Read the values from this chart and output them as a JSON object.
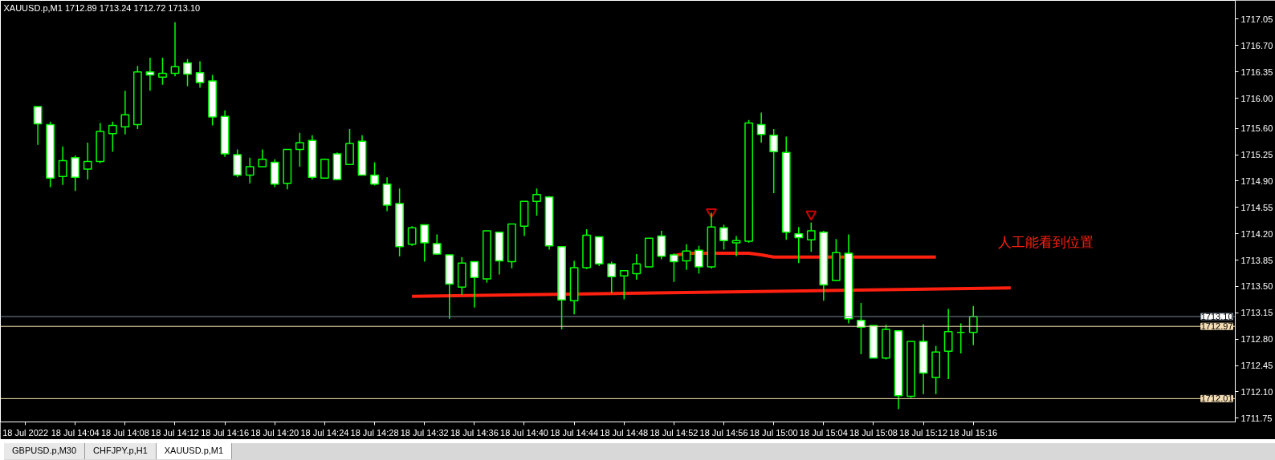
{
  "chart_data": {
    "type": "candlestick",
    "title": "XAUUSD.p,M1 1712.89 1713.24 1712.72 1713.10",
    "color": "#00ff00",
    "x": [
      "2022-07-18T14:01",
      "2022-07-18T14:02",
      "2022-07-18T14:03",
      "2022-07-18T14:04",
      "2022-07-18T14:05",
      "2022-07-18T14:06",
      "2022-07-18T14:07",
      "2022-07-18T14:08",
      "2022-07-18T14:09",
      "2022-07-18T14:10",
      "2022-07-18T14:11",
      "2022-07-18T14:12",
      "2022-07-18T14:13",
      "2022-07-18T14:14",
      "2022-07-18T14:15",
      "2022-07-18T14:16",
      "2022-07-18T14:17",
      "2022-07-18T14:18",
      "2022-07-18T14:19",
      "2022-07-18T14:20",
      "2022-07-18T14:21",
      "2022-07-18T14:22",
      "2022-07-18T14:23",
      "2022-07-18T14:24",
      "2022-07-18T14:25",
      "2022-07-18T14:26",
      "2022-07-18T14:27",
      "2022-07-18T14:28",
      "2022-07-18T14:29",
      "2022-07-18T14:30",
      "2022-07-18T14:31",
      "2022-07-18T14:32",
      "2022-07-18T14:33",
      "2022-07-18T14:34",
      "2022-07-18T14:35",
      "2022-07-18T14:36",
      "2022-07-18T14:37",
      "2022-07-18T14:38",
      "2022-07-18T14:39",
      "2022-07-18T14:40",
      "2022-07-18T14:41",
      "2022-07-18T14:42",
      "2022-07-18T14:43",
      "2022-07-18T14:44",
      "2022-07-18T14:45",
      "2022-07-18T14:46",
      "2022-07-18T14:47",
      "2022-07-18T14:48",
      "2022-07-18T14:49",
      "2022-07-18T14:50",
      "2022-07-18T14:51",
      "2022-07-18T14:52",
      "2022-07-18T14:53",
      "2022-07-18T14:54",
      "2022-07-18T14:55",
      "2022-07-18T14:56",
      "2022-07-18T14:57",
      "2022-07-18T14:58",
      "2022-07-18T14:59",
      "2022-07-18T15:00",
      "2022-07-18T15:01",
      "2022-07-18T15:02",
      "2022-07-18T15:03",
      "2022-07-18T15:04",
      "2022-07-18T15:05",
      "2022-07-18T15:06",
      "2022-07-18T15:07",
      "2022-07-18T15:08",
      "2022-07-18T15:09",
      "2022-07-18T15:10",
      "2022-07-18T15:11",
      "2022-07-18T15:12",
      "2022-07-18T15:13",
      "2022-07-18T15:14",
      "2022-07-18T15:15",
      "2022-07-18T15:16"
    ],
    "ohlc": [
      [
        1715.89,
        1715.89,
        1715.38,
        1715.66
      ],
      [
        1715.65,
        1715.69,
        1714.82,
        1714.94
      ],
      [
        1714.96,
        1715.36,
        1714.85,
        1715.17
      ],
      [
        1715.21,
        1715.24,
        1714.77,
        1714.95
      ],
      [
        1715.06,
        1715.41,
        1714.92,
        1715.16
      ],
      [
        1715.16,
        1715.67,
        1715.14,
        1715.56
      ],
      [
        1715.53,
        1715.69,
        1715.29,
        1715.64
      ],
      [
        1715.62,
        1716.1,
        1715.52,
        1715.78
      ],
      [
        1715.65,
        1716.43,
        1715.59,
        1716.35
      ],
      [
        1716.35,
        1716.54,
        1716.1,
        1716.31
      ],
      [
        1716.28,
        1716.54,
        1716.18,
        1716.33
      ],
      [
        1716.33,
        1717.01,
        1716.29,
        1716.42
      ],
      [
        1716.47,
        1716.52,
        1716.16,
        1716.32
      ],
      [
        1716.34,
        1716.49,
        1716.14,
        1716.21
      ],
      [
        1716.23,
        1716.31,
        1715.64,
        1715.75
      ],
      [
        1715.76,
        1715.84,
        1715.22,
        1715.26
      ],
      [
        1715.25,
        1715.32,
        1714.95,
        1714.98
      ],
      [
        1714.98,
        1715.21,
        1714.87,
        1715.09
      ],
      [
        1715.09,
        1715.32,
        1715.09,
        1715.19
      ],
      [
        1715.15,
        1715.19,
        1714.82,
        1714.86
      ],
      [
        1714.87,
        1715.32,
        1714.79,
        1715.32
      ],
      [
        1715.32,
        1715.54,
        1715.09,
        1715.41
      ],
      [
        1715.44,
        1715.51,
        1714.92,
        1714.95
      ],
      [
        1714.94,
        1715.2,
        1714.94,
        1715.19
      ],
      [
        1715.26,
        1715.28,
        1714.91,
        1714.92
      ],
      [
        1715.12,
        1715.59,
        1715.12,
        1715.4
      ],
      [
        1715.43,
        1715.51,
        1714.98,
        1714.98
      ],
      [
        1714.98,
        1715.15,
        1714.84,
        1714.86
      ],
      [
        1714.86,
        1714.95,
        1714.5,
        1714.58
      ],
      [
        1714.6,
        1714.8,
        1713.9,
        1714.03
      ],
      [
        1714.06,
        1714.3,
        1714.04,
        1714.28
      ],
      [
        1714.32,
        1714.32,
        1713.83,
        1714.08
      ],
      [
        1714.07,
        1714.19,
        1713.92,
        1713.93
      ],
      [
        1713.92,
        1713.92,
        1713.07,
        1713.53
      ],
      [
        1713.49,
        1713.89,
        1713.39,
        1713.81
      ],
      [
        1713.83,
        1713.83,
        1713.22,
        1713.62
      ],
      [
        1713.6,
        1714.24,
        1713.55,
        1714.24
      ],
      [
        1714.22,
        1714.22,
        1713.66,
        1713.84
      ],
      [
        1713.83,
        1714.33,
        1713.74,
        1714.33
      ],
      [
        1714.3,
        1714.63,
        1714.17,
        1714.63
      ],
      [
        1714.63,
        1714.8,
        1714.44,
        1714.72
      ],
      [
        1714.69,
        1714.7,
        1713.99,
        1714.04
      ],
      [
        1714.03,
        1714.03,
        1712.93,
        1713.32
      ],
      [
        1713.31,
        1713.84,
        1713.13,
        1713.75
      ],
      [
        1713.75,
        1714.26,
        1713.73,
        1714.18
      ],
      [
        1714.16,
        1714.16,
        1713.77,
        1713.8
      ],
      [
        1713.8,
        1713.83,
        1713.41,
        1713.63
      ],
      [
        1713.64,
        1713.71,
        1713.33,
        1713.71
      ],
      [
        1713.67,
        1713.93,
        1713.59,
        1713.8
      ],
      [
        1713.76,
        1714.14,
        1713.76,
        1714.14
      ],
      [
        1714.17,
        1714.24,
        1713.86,
        1713.9
      ],
      [
        1713.92,
        1713.94,
        1713.56,
        1713.83
      ],
      [
        1713.84,
        1714.06,
        1713.72,
        1713.97
      ],
      [
        1713.98,
        1714.04,
        1713.67,
        1713.76
      ],
      [
        1713.76,
        1714.48,
        1713.74,
        1714.29
      ],
      [
        1714.28,
        1714.32,
        1713.99,
        1714.11
      ],
      [
        1714.08,
        1714.17,
        1713.9,
        1714.11
      ],
      [
        1714.1,
        1715.71,
        1714.08,
        1715.67
      ],
      [
        1715.65,
        1715.81,
        1715.41,
        1715.52
      ],
      [
        1715.51,
        1715.59,
        1714.74,
        1715.29
      ],
      [
        1715.28,
        1715.49,
        1714.12,
        1714.22
      ],
      [
        1714.2,
        1714.29,
        1713.81,
        1714.15
      ],
      [
        1714.12,
        1714.35,
        1713.96,
        1714.24
      ],
      [
        1714.22,
        1714.24,
        1713.31,
        1713.52
      ],
      [
        1713.58,
        1714.13,
        1713.57,
        1713.95
      ],
      [
        1713.94,
        1714.19,
        1713.01,
        1713.07
      ],
      [
        1713.05,
        1713.28,
        1712.6,
        1712.96
      ],
      [
        1712.98,
        1712.98,
        1712.55,
        1712.55
      ],
      [
        1712.55,
        1712.99,
        1712.53,
        1712.93
      ],
      [
        1712.91,
        1712.91,
        1711.87,
        1712.05
      ],
      [
        1712.04,
        1712.77,
        1712.02,
        1712.77
      ],
      [
        1712.77,
        1713.0,
        1712.07,
        1712.35
      ],
      [
        1712.29,
        1712.71,
        1712.07,
        1712.63
      ],
      [
        1712.64,
        1713.2,
        1712.27,
        1712.9
      ],
      [
        1712.89,
        1713.01,
        1712.61,
        1712.89
      ],
      [
        1712.89,
        1713.24,
        1712.72,
        1713.1
      ]
    ],
    "series": [
      {
        "type": "line",
        "color": "#ff2010",
        "x": [
          "2022-07-18T14:31",
          "2022-07-18T15:19"
        ],
        "values": [
          1713.37,
          1713.48
        ]
      },
      {
        "type": "line",
        "color": "#ff2010",
        "x": [
          "2022-07-18T14:52",
          "2022-07-18T14:53",
          "2022-07-18T14:58",
          "2022-07-18T14:59",
          "2022-07-18T15:00",
          "2022-07-18T15:13"
        ],
        "values": [
          1713.91,
          1713.94,
          1713.94,
          1713.92,
          1713.89,
          1713.89
        ]
      },
      {
        "type": "scatter",
        "color": "#cc0000",
        "marker": "triangle",
        "x": [
          "2022-07-18T14:55",
          "2022-07-18T15:03"
        ],
        "values": [
          1714.49,
          1714.46
        ]
      }
    ],
    "ref_lines": [
      {
        "axis": "y",
        "value": 1713.1,
        "label": "1713.10",
        "color": "#778899"
      },
      {
        "axis": "y",
        "value": 1712.97,
        "label": "1712.97",
        "color": "#f5deb3"
      },
      {
        "axis": "y",
        "value": 1712.01,
        "label": "1712.01",
        "color": "#f5deb3"
      }
    ],
    "annotations": [
      "人工能看到位置",
      "GBPUSD.p,M30",
      "CHFJPY.p,H1",
      "XAUUSD.p,M1"
    ],
    "xlim": [
      "2022-07-18T13:58",
      "2022-07-18T15:37"
    ],
    "xticks": [
      {
        "value": "2022-07-18T14:00",
        "label": "18 Jul 2022"
      },
      {
        "value": "2022-07-18T14:04",
        "label": "18 Jul 14:04"
      },
      {
        "value": "2022-07-18T14:08",
        "label": "18 Jul 14:08"
      },
      {
        "value": "2022-07-18T14:12",
        "label": "18 Jul 14:12"
      },
      {
        "value": "2022-07-18T14:16",
        "label": "18 Jul 14:16"
      },
      {
        "value": "2022-07-18T14:20",
        "label": "18 Jul 14:20"
      },
      {
        "value": "2022-07-18T14:24",
        "label": "18 Jul 14:24"
      },
      {
        "value": "2022-07-18T14:28",
        "label": "18 Jul 14:28"
      },
      {
        "value": "2022-07-18T14:32",
        "label": "18 Jul 14:32"
      },
      {
        "value": "2022-07-18T14:36",
        "label": "18 Jul 14:36"
      },
      {
        "value": "2022-07-18T14:40",
        "label": "18 Jul 14:40"
      },
      {
        "value": "2022-07-18T14:44",
        "label": "18 Jul 14:44"
      },
      {
        "value": "2022-07-18T14:48",
        "label": "18 Jul 14:48"
      },
      {
        "value": "2022-07-18T14:52",
        "label": "18 Jul 14:52"
      },
      {
        "value": "2022-07-18T14:56",
        "label": "18 Jul 14:56"
      },
      {
        "value": "2022-07-18T15:00",
        "label": "18 Jul 15:00"
      },
      {
        "value": "2022-07-18T15:04",
        "label": "18 Jul 15:04"
      },
      {
        "value": "2022-07-18T15:08",
        "label": "18 Jul 15:08"
      },
      {
        "value": "2022-07-18T15:12",
        "label": "18 Jul 15:12"
      },
      {
        "value": "2022-07-18T15:16",
        "label": "18 Jul 15:16"
      }
    ],
    "ylim": [
      1711.7,
      1717.3
    ],
    "yticks": [
      {
        "value": 1717.05,
        "label": "1717.05"
      },
      {
        "value": 1716.7,
        "label": "1716.70"
      },
      {
        "value": 1716.35,
        "label": "1716.35"
      },
      {
        "value": 1716.0,
        "label": "1716.00"
      },
      {
        "value": 1715.6,
        "label": "1715.60"
      },
      {
        "value": 1715.25,
        "label": "1715.25"
      },
      {
        "value": 1714.9,
        "label": "1714.90"
      },
      {
        "value": 1714.55,
        "label": "1714.55"
      },
      {
        "value": 1714.2,
        "label": "1714.20"
      },
      {
        "value": 1713.85,
        "label": "1713.85"
      },
      {
        "value": 1713.5,
        "label": "1713.50"
      },
      {
        "value": 1713.15,
        "label": "1713.15"
      },
      {
        "value": 1712.8,
        "label": "1712.80"
      },
      {
        "value": 1712.45,
        "label": "1712.45"
      },
      {
        "value": 1712.1,
        "label": "1712.10"
      },
      {
        "value": 1711.75,
        "label": "1711.75"
      }
    ],
    "grid": false
  }
}
